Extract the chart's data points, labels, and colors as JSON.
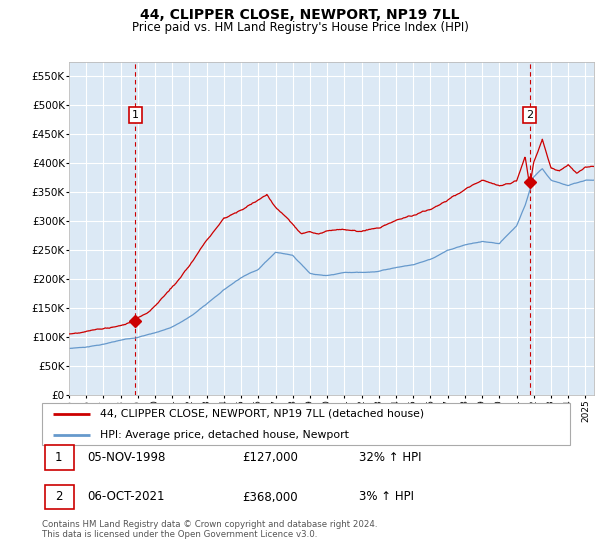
{
  "title": "44, CLIPPER CLOSE, NEWPORT, NP19 7LL",
  "subtitle": "Price paid vs. HM Land Registry's House Price Index (HPI)",
  "plot_bg_color": "#dce9f5",
  "ylim": [
    0,
    575000
  ],
  "yticks": [
    0,
    50000,
    100000,
    150000,
    200000,
    250000,
    300000,
    350000,
    400000,
    450000,
    500000,
    550000
  ],
  "ytick_labels": [
    "£0",
    "£50K",
    "£100K",
    "£150K",
    "£200K",
    "£250K",
    "£300K",
    "£350K",
    "£400K",
    "£450K",
    "£500K",
    "£550K"
  ],
  "sale1_date": 1998.85,
  "sale1_price": 127000,
  "sale1_label": "1",
  "sale2_date": 2021.77,
  "sale2_price": 368000,
  "sale2_label": "2",
  "legend_red_label": "44, CLIPPER CLOSE, NEWPORT, NP19 7LL (detached house)",
  "legend_blue_label": "HPI: Average price, detached house, Newport",
  "table_row1": [
    "1",
    "05-NOV-1998",
    "£127,000",
    "32% ↑ HPI"
  ],
  "table_row2": [
    "2",
    "06-OCT-2021",
    "£368,000",
    "3% ↑ HPI"
  ],
  "footnote": "Contains HM Land Registry data © Crown copyright and database right 2024.\nThis data is licensed under the Open Government Licence v3.0.",
  "red_color": "#cc0000",
  "blue_color": "#6699cc",
  "grid_color": "#ffffff",
  "xmin": 1995,
  "xmax": 2025.5,
  "hpi_knots_x": [
    1995,
    1996,
    1997,
    1998,
    1999,
    2000,
    2001,
    2002,
    2003,
    2004,
    2005,
    2006,
    2007,
    2008,
    2009,
    2010,
    2011,
    2012,
    2013,
    2014,
    2015,
    2016,
    2017,
    2018,
    2019,
    2020,
    2021,
    2021.5,
    2022,
    2022.5,
    2023,
    2024,
    2025
  ],
  "hpi_knots_y": [
    80000,
    83000,
    88000,
    94000,
    100000,
    108000,
    118000,
    135000,
    158000,
    183000,
    205000,
    220000,
    250000,
    245000,
    215000,
    210000,
    215000,
    215000,
    218000,
    225000,
    230000,
    240000,
    255000,
    265000,
    270000,
    265000,
    295000,
    330000,
    380000,
    395000,
    375000,
    365000,
    375000
  ],
  "prop_knots_x": [
    1995,
    1996,
    1997,
    1998,
    1998.85,
    1999,
    1999.5,
    2000,
    2001,
    2002,
    2003,
    2004,
    2005,
    2006,
    2006.5,
    2007,
    2007.5,
    2008,
    2008.5,
    2009,
    2009.5,
    2010,
    2011,
    2012,
    2013,
    2014,
    2015,
    2016,
    2017,
    2018,
    2019,
    2020,
    2021,
    2021.5,
    2021.77,
    2022,
    2022.5,
    2023,
    2023.5,
    2024,
    2024.5,
    2025
  ],
  "prop_knots_y": [
    105000,
    108000,
    112000,
    118000,
    127000,
    132000,
    140000,
    155000,
    185000,
    220000,
    265000,
    305000,
    318000,
    335000,
    345000,
    325000,
    310000,
    295000,
    280000,
    285000,
    282000,
    288000,
    292000,
    288000,
    295000,
    310000,
    318000,
    330000,
    348000,
    365000,
    380000,
    370000,
    380000,
    420000,
    368000,
    410000,
    450000,
    400000,
    395000,
    405000,
    390000,
    400000
  ]
}
